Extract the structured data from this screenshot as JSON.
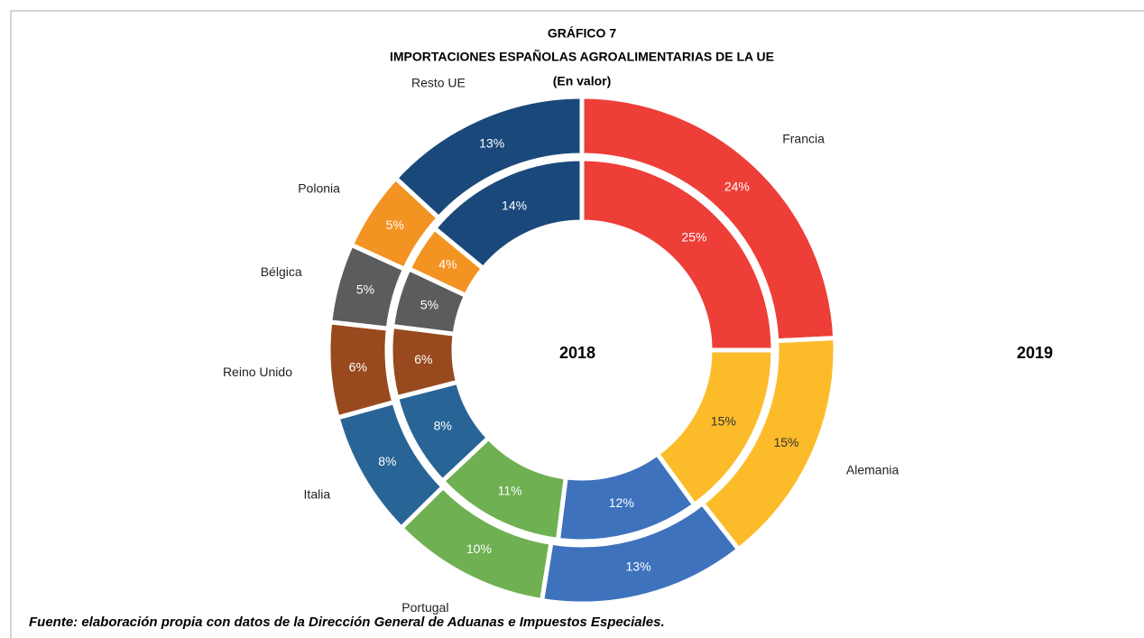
{
  "chart_data": {
    "type": "donut",
    "title": "GRÁFICO 7",
    "subtitle": "IMPORTACIONES ESPAÑOLAS AGROALIMENTARIAS DE LA UE",
    "subtitle2": "(En valor)",
    "source": "Fuente: elaboración propia con datos de la Dirección General de Aduanas e Impuestos Especiales.",
    "categories": [
      "Francia",
      "Alemania",
      null,
      "Portugal",
      "Italia",
      "Reino Unido",
      "Bélgica",
      "Polonia",
      "Resto UE"
    ],
    "colors": [
      "#ee3e38",
      "#fcbc2a",
      "#3e72bd",
      "#6fb052",
      "#286496",
      "#984a1e",
      "#5a5c5e",
      "#f39322",
      "#1a487a"
    ],
    "series": [
      {
        "name": "2018",
        "values": [
          25,
          15,
          12,
          11,
          8,
          6,
          5,
          4,
          14
        ],
        "value_labels": [
          "25%",
          "15%",
          "12%",
          "11%",
          "8%",
          "6%",
          "5%",
          "4%",
          "14%"
        ]
      },
      {
        "name": "2019",
        "values": [
          24,
          15,
          13,
          10,
          8,
          6,
          5,
          5,
          13
        ],
        "value_labels": [
          "24%",
          "15%",
          "13%",
          "10%",
          "8%",
          "6%",
          "5%",
          "5%",
          "13%"
        ]
      }
    ]
  }
}
